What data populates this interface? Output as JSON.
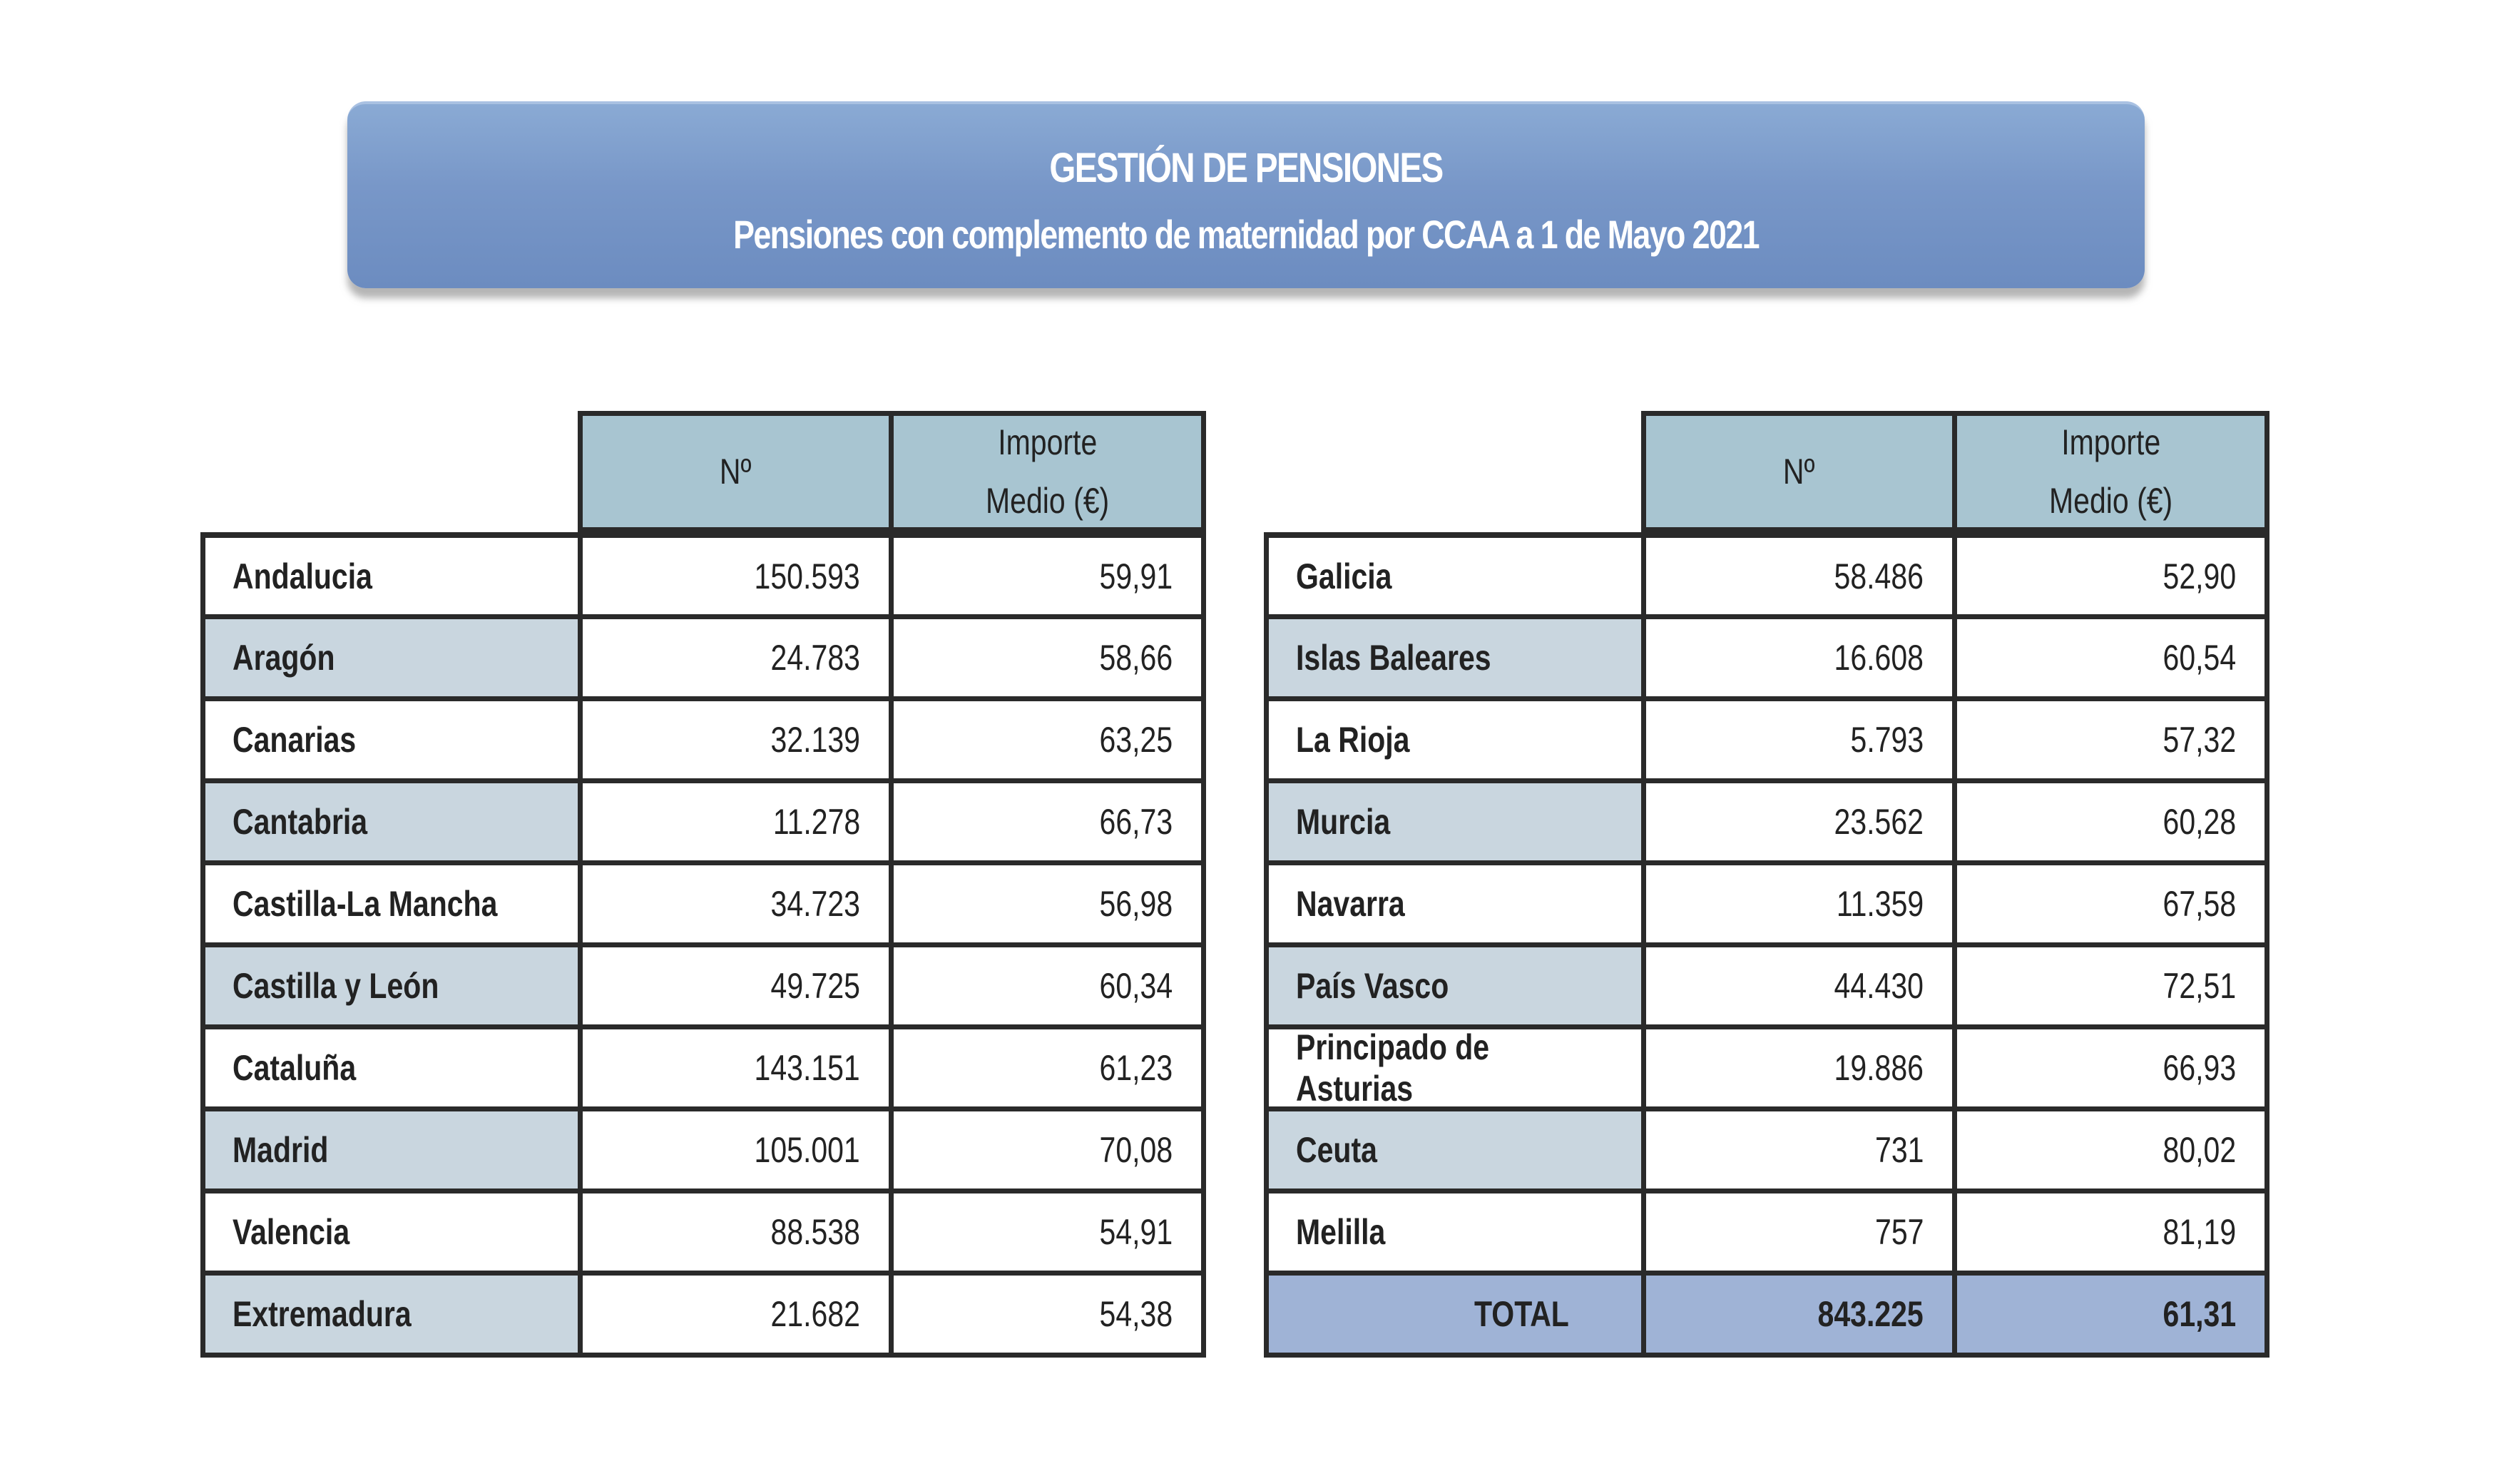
{
  "banner": {
    "title": "GESTIÓN DE  PENSIONES",
    "subtitle": "Pensiones con complemento de maternidad por CCAA a 1 de Mayo 2021"
  },
  "columns": {
    "number": "Nº",
    "amount_line1": "Importe",
    "amount_line2": "Medio (€)"
  },
  "left_table": [
    {
      "region": "Andalucia",
      "number": "150.593",
      "amount": "59,91"
    },
    {
      "region": "Aragón",
      "number": "24.783",
      "amount": "58,66"
    },
    {
      "region": "Canarias",
      "number": "32.139",
      "amount": "63,25"
    },
    {
      "region": "Cantabria",
      "number": "11.278",
      "amount": "66,73"
    },
    {
      "region": "Castilla-La Mancha",
      "number": "34.723",
      "amount": "56,98"
    },
    {
      "region": "Castilla y León",
      "number": "49.725",
      "amount": "60,34"
    },
    {
      "region": "Cataluña",
      "number": "143.151",
      "amount": "61,23"
    },
    {
      "region": "Madrid",
      "number": "105.001",
      "amount": "70,08"
    },
    {
      "region": "Valencia",
      "number": "88.538",
      "amount": "54,91"
    },
    {
      "region": "Extremadura",
      "number": "21.682",
      "amount": "54,38"
    }
  ],
  "right_table": [
    {
      "region": "Galicia",
      "number": "58.486",
      "amount": "52,90"
    },
    {
      "region": "Islas Baleares",
      "number": "16.608",
      "amount": "60,54"
    },
    {
      "region": "La Rioja",
      "number": "5.793",
      "amount": "57,32"
    },
    {
      "region": "Murcia",
      "number": "23.562",
      "amount": "60,28"
    },
    {
      "region": "Navarra",
      "number": "11.359",
      "amount": "67,58"
    },
    {
      "region": "País Vasco",
      "number": "44.430",
      "amount": "72,51"
    },
    {
      "region": "Principado de Asturias",
      "number": "19.886",
      "amount": "66,93"
    },
    {
      "region": "Ceuta",
      "number": "731",
      "amount": "80,02"
    },
    {
      "region": "Melilla",
      "number": "757",
      "amount": "81,19"
    }
  ],
  "total": {
    "label": "TOTAL",
    "number": "843.225",
    "amount": "61,31"
  },
  "colors": {
    "banner": "#7897c8",
    "header_cell": "#a8c5d1",
    "alt_row": "#c9d6df",
    "total_row": "#9fb3d6"
  }
}
